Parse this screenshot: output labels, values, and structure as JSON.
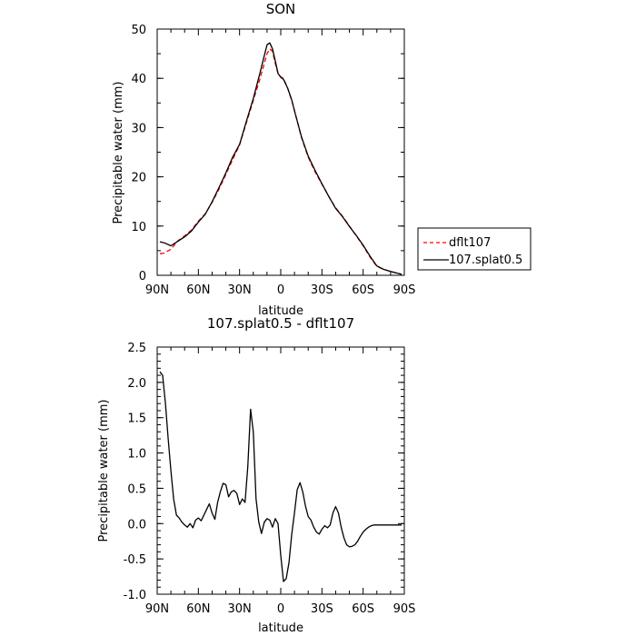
{
  "chart_data": [
    {
      "type": "line",
      "title": "SON",
      "xlabel": "latitude",
      "ylabel": "Precipitable water  (mm)",
      "x_tick_labels": [
        "90N",
        "60N",
        "30N",
        "0",
        "30S",
        "60S",
        "90S"
      ],
      "y_tick_labels": [
        "0",
        "10",
        "20",
        "30",
        "40",
        "50"
      ],
      "xlim": [
        90,
        -90
      ],
      "ylim": [
        0,
        50
      ],
      "legend": {
        "placement": "right",
        "entries": [
          "dflt107",
          "107.splat0.5"
        ]
      },
      "series": [
        {
          "name": "dflt107",
          "color": "#ff0000",
          "dash": "dashed",
          "x": [
            88,
            85,
            80,
            75,
            70,
            65,
            60,
            55,
            50,
            45,
            40,
            35,
            30,
            25,
            20,
            15,
            12,
            10,
            8,
            6,
            4,
            2,
            0,
            -2,
            -5,
            -8,
            -10,
            -15,
            -20,
            -25,
            -30,
            -35,
            -40,
            -45,
            -50,
            -55,
            -60,
            -65,
            -70,
            -75,
            -80,
            -85,
            -88
          ],
          "y": [
            4.4,
            4.5,
            5.3,
            7.0,
            8.0,
            9.2,
            11.0,
            12.5,
            14.8,
            17.5,
            20.5,
            23.5,
            26.5,
            31.0,
            35.5,
            40.0,
            43.0,
            45.0,
            46.0,
            45.5,
            43.0,
            41.0,
            40.3,
            40.0,
            38.0,
            35.5,
            33.5,
            28.0,
            24.0,
            21.0,
            18.5,
            16.0,
            13.7,
            12.0,
            10.0,
            8.0,
            6.0,
            3.7,
            1.8,
            1.2,
            0.8,
            0.4,
            0.2
          ]
        },
        {
          "name": "107.splat0.5",
          "color": "#000000",
          "dash": "solid",
          "x": [
            88,
            85,
            80,
            75,
            70,
            65,
            60,
            55,
            50,
            45,
            40,
            35,
            30,
            25,
            20,
            15,
            12,
            10,
            8,
            6,
            4,
            2,
            0,
            -2,
            -5,
            -8,
            -10,
            -15,
            -20,
            -25,
            -30,
            -35,
            -40,
            -45,
            -50,
            -55,
            -60,
            -65,
            -70,
            -75,
            -80,
            -85,
            -88
          ],
          "y": [
            6.8,
            6.6,
            6.0,
            6.9,
            7.8,
            9.0,
            10.8,
            12.4,
            14.9,
            17.8,
            20.8,
            24.0,
            26.6,
            31.3,
            35.9,
            41.2,
            44.6,
            46.8,
            47.2,
            46.0,
            43.5,
            41.0,
            40.2,
            39.8,
            38.0,
            35.6,
            33.4,
            28.2,
            24.2,
            21.3,
            18.6,
            16.0,
            13.6,
            11.9,
            9.9,
            8.1,
            6.1,
            3.9,
            1.9,
            1.2,
            0.8,
            0.4,
            0.2
          ]
        }
      ]
    },
    {
      "type": "line",
      "title": "107.splat0.5 - dflt107",
      "xlabel": "latitude",
      "ylabel": "Precipitable water  (mm)",
      "x_tick_labels": [
        "90N",
        "60N",
        "30N",
        "0",
        "30S",
        "60S",
        "90S"
      ],
      "y_tick_labels": [
        "-1.0",
        "-0.5",
        "0.0",
        "0.5",
        "1.0",
        "1.5",
        "2.0",
        "2.5"
      ],
      "xlim": [
        90,
        -90
      ],
      "ylim": [
        -1.0,
        2.5
      ],
      "series": [
        {
          "color": "#000000",
          "dash": "solid",
          "x": [
            88,
            86,
            84,
            82,
            80,
            78,
            76,
            74,
            72,
            70,
            68,
            66,
            64,
            62,
            60,
            58,
            56,
            54,
            52,
            50,
            48,
            46,
            44,
            42,
            40,
            38,
            36,
            34,
            32,
            30,
            28,
            26,
            24,
            22,
            20,
            18,
            16,
            14,
            12,
            10,
            8,
            6,
            4,
            2,
            0,
            -2,
            -4,
            -6,
            -8,
            -10,
            -12,
            -14,
            -16,
            -18,
            -20,
            -22,
            -24,
            -26,
            -28,
            -30,
            -32,
            -34,
            -36,
            -38,
            -40,
            -42,
            -44,
            -46,
            -48,
            -50,
            -52,
            -54,
            -56,
            -58,
            -60,
            -62,
            -64,
            -66,
            -68,
            -70,
            -72,
            -74,
            -76,
            -78,
            -80,
            -82,
            -84,
            -86,
            -88
          ],
          "y": [
            2.15,
            2.1,
            1.7,
            1.2,
            0.75,
            0.35,
            0.12,
            0.08,
            0.02,
            -0.02,
            -0.05,
            0.0,
            -0.06,
            0.05,
            0.08,
            0.04,
            0.12,
            0.2,
            0.28,
            0.15,
            0.06,
            0.3,
            0.45,
            0.57,
            0.55,
            0.38,
            0.45,
            0.47,
            0.43,
            0.27,
            0.35,
            0.3,
            0.8,
            1.62,
            1.3,
            0.35,
            0.02,
            -0.14,
            0.02,
            0.07,
            0.05,
            -0.05,
            0.07,
            0.0,
            -0.45,
            -0.82,
            -0.78,
            -0.55,
            -0.15,
            0.15,
            0.48,
            0.58,
            0.45,
            0.25,
            0.1,
            0.05,
            -0.05,
            -0.12,
            -0.15,
            -0.08,
            -0.03,
            -0.06,
            -0.02,
            0.15,
            0.24,
            0.15,
            -0.05,
            -0.2,
            -0.3,
            -0.33,
            -0.32,
            -0.3,
            -0.25,
            -0.18,
            -0.12,
            -0.08,
            -0.05,
            -0.03,
            -0.02,
            -0.02,
            -0.02,
            -0.02,
            -0.02,
            -0.02,
            -0.02,
            -0.02,
            -0.02,
            -0.02,
            -0.02
          ]
        }
      ]
    }
  ]
}
